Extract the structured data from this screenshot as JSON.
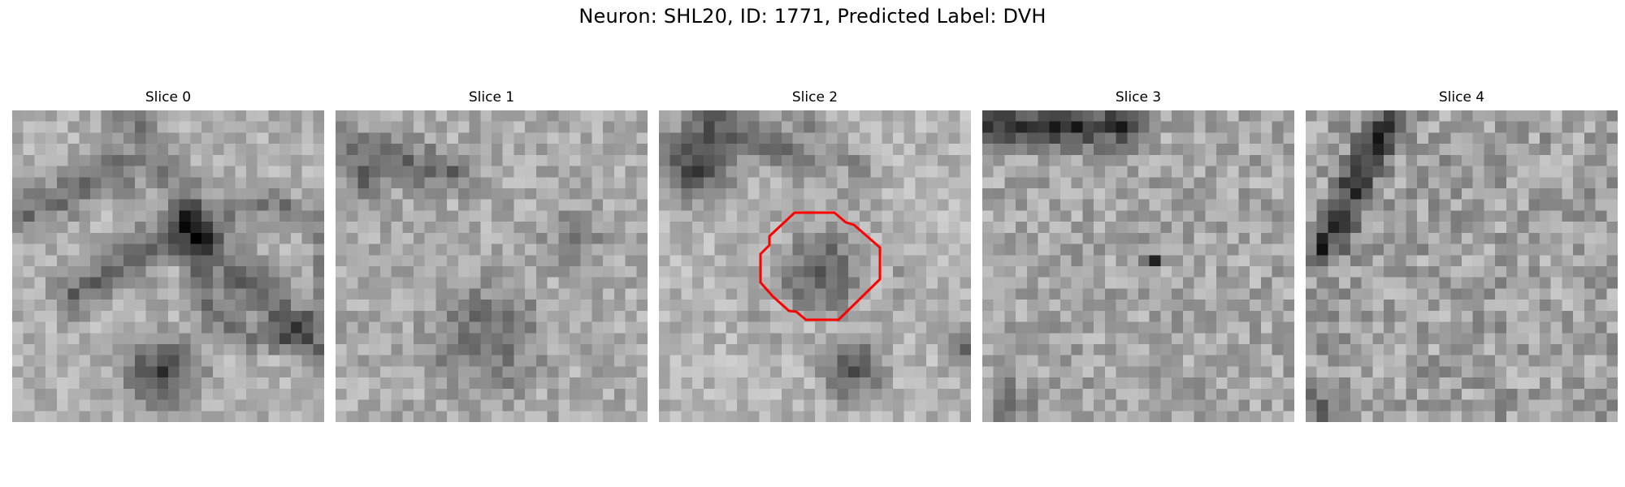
{
  "figure": {
    "title": "Neuron: SHL20, ID: 1771, Predicted Label: DVH"
  },
  "panels": [
    {
      "title": "Slice 0"
    },
    {
      "title": "Slice 1"
    },
    {
      "title": "Slice 2"
    },
    {
      "title": "Slice 3"
    },
    {
      "title": "Slice 4"
    }
  ],
  "colors": {
    "outline": "#ff0000",
    "background": "#ffffff"
  },
  "colormap": "gray",
  "grid_size": 28,
  "outline_panel": 2
}
